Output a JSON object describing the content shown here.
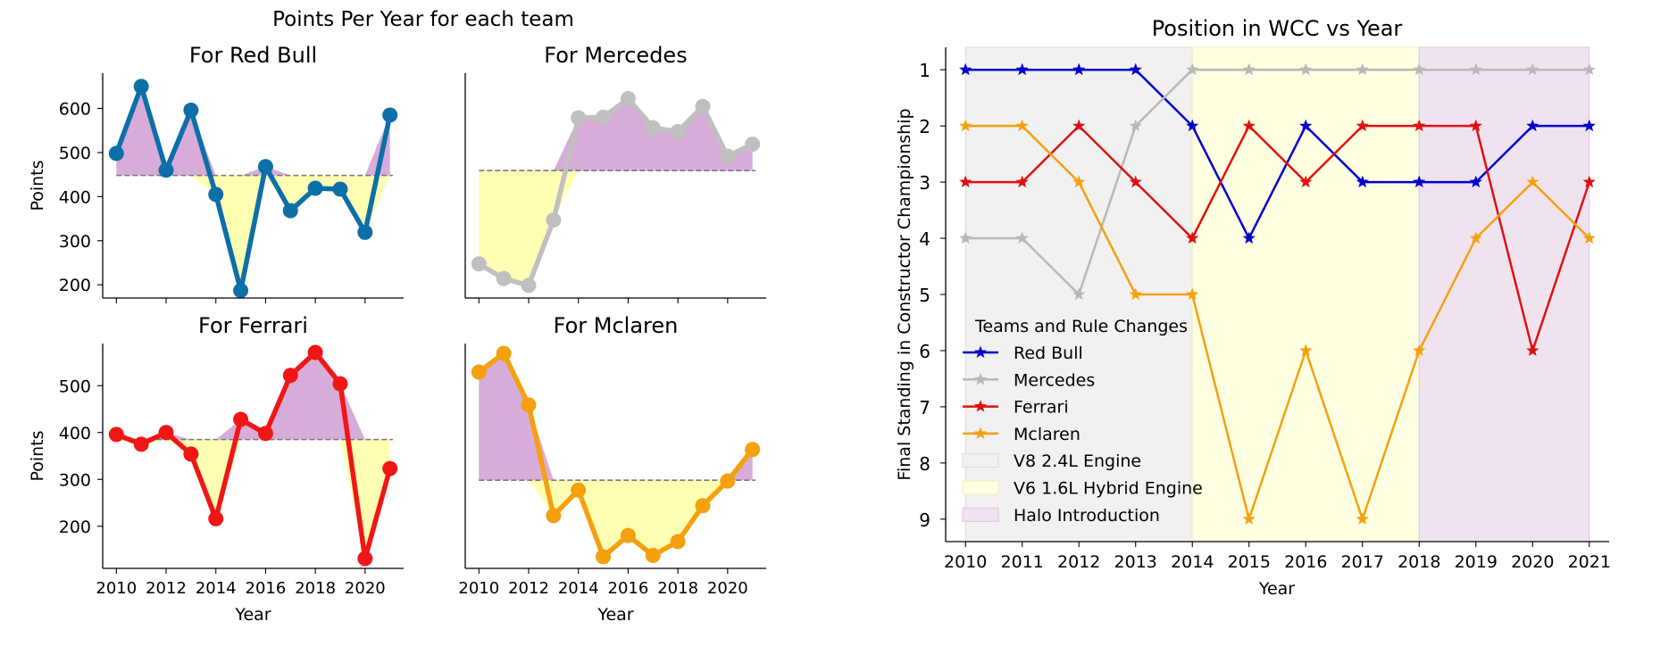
{
  "figure": {
    "suptitle": "Points Per Year for each team"
  },
  "colors": {
    "red_bull": "#0c6fa8",
    "mercedes": "#c0c0c0",
    "ferrari": "#f01616",
    "mclaren": "#f5a00f",
    "above_fill": "#d7acd8",
    "below_fill": "#ffffb3",
    "mean_line": "#777777",
    "wcc_red_bull": "#0000d0",
    "wcc_mercedes": "#b8b8b8",
    "wcc_ferrari": "#e01010",
    "wcc_mclaren": "#f5a00f",
    "v8_band": "#f1f1f1",
    "hybrid_band": "#ffffe1",
    "halo_band": "#f0e3f0"
  },
  "chart_data": [
    {
      "type": "line",
      "title": "For Red Bull",
      "xlabel": "",
      "ylabel": "Points",
      "x": [
        2010,
        2011,
        2012,
        2013,
        2014,
        2015,
        2016,
        2017,
        2018,
        2019,
        2020,
        2021
      ],
      "values": [
        498,
        650,
        460,
        596,
        405,
        187,
        468,
        368,
        419,
        417,
        319,
        585
      ],
      "mean": 448,
      "ylim": [
        170,
        680
      ],
      "yticks": [
        200,
        300,
        400,
        500,
        600
      ],
      "xticks": [
        2010,
        2012,
        2014,
        2016,
        2018,
        2020
      ],
      "show_x_ticklabels": false,
      "show_yticks": true
    },
    {
      "type": "line",
      "title": "For Mercedes",
      "xlabel": "",
      "ylabel": "",
      "x": [
        2010,
        2011,
        2012,
        2013,
        2014,
        2015,
        2016,
        2017,
        2018,
        2019,
        2020,
        2021
      ],
      "values": [
        214,
        165,
        142,
        360,
        701,
        703,
        765,
        668,
        655,
        739,
        573,
        613
      ],
      "mean": 525,
      "ylim": [
        100,
        850
      ],
      "xticks": [
        2010,
        2012,
        2014,
        2016,
        2018,
        2020
      ],
      "show_x_ticklabels": false,
      "show_yticks": false
    },
    {
      "type": "line",
      "title": "For Ferrari",
      "xlabel": "Year",
      "ylabel": "Points",
      "x": [
        2010,
        2011,
        2012,
        2013,
        2014,
        2015,
        2016,
        2017,
        2018,
        2019,
        2020,
        2021
      ],
      "values": [
        396,
        375,
        400,
        354,
        216,
        428,
        398,
        522,
        571,
        504,
        131,
        323
      ],
      "mean": 385,
      "ylim": [
        110,
        590
      ],
      "yticks": [
        200,
        300,
        400,
        500
      ],
      "xticks": [
        2010,
        2012,
        2014,
        2016,
        2018,
        2020
      ],
      "show_x_ticklabels": true,
      "show_yticks": true
    },
    {
      "type": "line",
      "title": "For Mclaren",
      "xlabel": "Year",
      "ylabel": "",
      "x": [
        2010,
        2011,
        2012,
        2013,
        2014,
        2015,
        2016,
        2017,
        2018,
        2019,
        2020,
        2021
      ],
      "values": [
        454,
        497,
        378,
        122,
        181,
        27,
        76,
        30,
        62,
        145,
        202,
        275
      ],
      "mean": 204,
      "ylim": [
        0,
        520
      ],
      "xticks": [
        2010,
        2012,
        2014,
        2016,
        2018,
        2020
      ],
      "show_x_ticklabels": true,
      "show_yticks": false
    },
    {
      "type": "line",
      "title": "Position in WCC vs Year",
      "xlabel": "Year",
      "ylabel": "Final Standing in Constructor Championship",
      "x": [
        2010,
        2011,
        2012,
        2013,
        2014,
        2015,
        2016,
        2017,
        2018,
        2019,
        2020,
        2021
      ],
      "xticks": [
        2010,
        2011,
        2012,
        2013,
        2014,
        2015,
        2016,
        2017,
        2018,
        2019,
        2020,
        2021
      ],
      "yticks": [
        1,
        2,
        3,
        4,
        5,
        6,
        7,
        8,
        9
      ],
      "ylim": [
        9.4,
        0.6
      ],
      "inverted_y": true,
      "series": [
        {
          "name": "Red Bull",
          "values": [
            1,
            1,
            1,
            1,
            2,
            4,
            2,
            3,
            3,
            3,
            2,
            2
          ]
        },
        {
          "name": "Mercedes",
          "values": [
            4,
            4,
            5,
            2,
            1,
            1,
            1,
            1,
            1,
            1,
            1,
            1
          ]
        },
        {
          "name": "Ferrari",
          "values": [
            3,
            3,
            2,
            3,
            4,
            2,
            3,
            2,
            2,
            2,
            6,
            3
          ]
        },
        {
          "name": "Mclaren",
          "values": [
            2,
            2,
            3,
            5,
            5,
            9,
            6,
            9,
            6,
            4,
            3,
            4
          ]
        }
      ],
      "bands": [
        {
          "name": "V8 2.4L Engine",
          "from": 2010,
          "to": 2014
        },
        {
          "name": "V6 1.6L Hybrid Engine",
          "from": 2014,
          "to": 2018
        },
        {
          "name": "Halo Introduction",
          "from": 2018,
          "to": 2021
        }
      ],
      "legend": {
        "title": "Teams and Rule Changes",
        "placement": "lower-left"
      }
    }
  ]
}
